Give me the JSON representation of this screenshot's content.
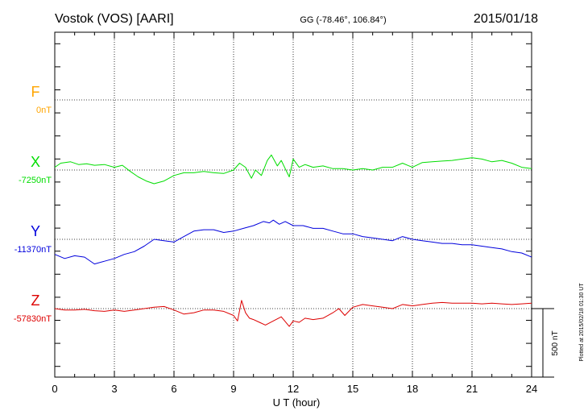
{
  "header": {
    "station": "Vostok (VOS)  [AARI]",
    "coords": "GG (-78.46°, 106.84°)",
    "date": "2015/01/18"
  },
  "footer": {
    "plotted_note": "Plotted at 2015/02/18 01:30 UT",
    "scale_label": "500 nT"
  },
  "colors": {
    "F": "#ffa500",
    "X": "#00dd00",
    "Y": "#0000dd",
    "Z": "#dd0000",
    "grid": "#000000"
  },
  "chart_data": {
    "type": "line",
    "xlabel": "U T (hour)",
    "x_ticks": [
      "0",
      "3",
      "6",
      "9",
      "12",
      "15",
      "18",
      "21",
      "24"
    ],
    "xlim": [
      0,
      24
    ],
    "scale_bar_nT": 500,
    "series": [
      {
        "name": "F",
        "baseline_label": "0nT",
        "baseline_nT": 0,
        "x": [],
        "y": []
      },
      {
        "name": "X",
        "baseline_label": "-7250nT",
        "baseline_nT": -7250,
        "x": [
          0,
          0.3,
          0.8,
          1.2,
          1.6,
          2.0,
          2.5,
          3.0,
          3.4,
          3.8,
          4.2,
          4.6,
          5.0,
          5.5,
          6.0,
          6.5,
          7.0,
          7.5,
          8.0,
          8.5,
          9.0,
          9.3,
          9.6,
          9.9,
          10.1,
          10.4,
          10.7,
          10.9,
          11.2,
          11.4,
          11.6,
          11.8,
          12.0,
          12.3,
          12.6,
          13.0,
          13.5,
          14.0,
          14.5,
          15.0,
          15.5,
          16.0,
          16.5,
          17.0,
          17.5,
          18.0,
          18.5,
          19.0,
          19.5,
          20.0,
          20.5,
          21.0,
          21.5,
          22.0,
          22.5,
          23.0,
          23.5,
          24.0
        ],
        "y": [
          -7230,
          -7200,
          -7190,
          -7210,
          -7205,
          -7215,
          -7210,
          -7230,
          -7215,
          -7260,
          -7300,
          -7330,
          -7350,
          -7330,
          -7290,
          -7270,
          -7270,
          -7260,
          -7270,
          -7275,
          -7250,
          -7200,
          -7230,
          -7310,
          -7250,
          -7290,
          -7180,
          -7140,
          -7220,
          -7180,
          -7240,
          -7300,
          -7170,
          -7230,
          -7210,
          -7230,
          -7220,
          -7240,
          -7240,
          -7250,
          -7240,
          -7250,
          -7230,
          -7230,
          -7200,
          -7230,
          -7195,
          -7190,
          -7185,
          -7180,
          -7170,
          -7160,
          -7170,
          -7190,
          -7180,
          -7200,
          -7230,
          -7240
        ]
      },
      {
        "name": "Y",
        "baseline_label": "-11370nT",
        "baseline_nT": -11370,
        "x": [
          0,
          0.5,
          1.0,
          1.5,
          2.0,
          2.5,
          3.0,
          3.5,
          4.0,
          4.5,
          5.0,
          5.5,
          6.0,
          6.5,
          7.0,
          7.5,
          8.0,
          8.5,
          9.0,
          9.5,
          10.0,
          10.5,
          10.8,
          11.0,
          11.3,
          11.6,
          12.0,
          12.5,
          13.0,
          13.5,
          14.0,
          14.5,
          15.0,
          15.5,
          16.0,
          16.5,
          17.0,
          17.5,
          18.0,
          18.5,
          19.0,
          19.5,
          20.0,
          20.5,
          21.0,
          21.5,
          22.0,
          22.5,
          23.0,
          23.5,
          24.0
        ],
        "y": [
          -11480,
          -11510,
          -11490,
          -11500,
          -11550,
          -11530,
          -11510,
          -11480,
          -11460,
          -11420,
          -11370,
          -11380,
          -11390,
          -11350,
          -11310,
          -11300,
          -11300,
          -11320,
          -11310,
          -11290,
          -11270,
          -11240,
          -11250,
          -11230,
          -11260,
          -11240,
          -11270,
          -11270,
          -11290,
          -11290,
          -11310,
          -11330,
          -11330,
          -11350,
          -11360,
          -11370,
          -11380,
          -11350,
          -11370,
          -11380,
          -11390,
          -11400,
          -11400,
          -11410,
          -11410,
          -11420,
          -11430,
          -11440,
          -11460,
          -11470,
          -11500
        ]
      },
      {
        "name": "Z",
        "baseline_label": "-57830nT",
        "baseline_nT": -57830,
        "x": [
          0,
          0.5,
          1.0,
          1.5,
          2.0,
          2.5,
          3.0,
          3.5,
          4.0,
          4.5,
          5.0,
          5.5,
          6.0,
          6.5,
          7.0,
          7.5,
          8.0,
          8.5,
          9.0,
          9.2,
          9.4,
          9.6,
          9.8,
          10.0,
          10.3,
          10.6,
          11.0,
          11.4,
          11.8,
          12.0,
          12.3,
          12.6,
          13.0,
          13.5,
          14.0,
          14.3,
          14.6,
          15.0,
          15.5,
          16.0,
          16.5,
          17.0,
          17.5,
          18.0,
          18.5,
          19.0,
          19.5,
          20.0,
          20.5,
          21.0,
          21.5,
          22.0,
          22.5,
          23.0,
          23.5,
          24.0
        ],
        "y": [
          -57830,
          -57840,
          -57840,
          -57835,
          -57845,
          -57850,
          -57840,
          -57850,
          -57840,
          -57830,
          -57820,
          -57815,
          -57840,
          -57870,
          -57860,
          -57840,
          -57840,
          -57850,
          -57880,
          -57920,
          -57770,
          -57860,
          -57900,
          -57910,
          -57930,
          -57950,
          -57920,
          -57890,
          -57960,
          -57920,
          -57930,
          -57900,
          -57910,
          -57900,
          -57860,
          -57830,
          -57880,
          -57820,
          -57800,
          -57810,
          -57820,
          -57830,
          -57800,
          -57810,
          -57800,
          -57790,
          -57785,
          -57790,
          -57790,
          -57790,
          -57795,
          -57790,
          -57795,
          -57800,
          -57795,
          -57790
        ]
      }
    ]
  }
}
